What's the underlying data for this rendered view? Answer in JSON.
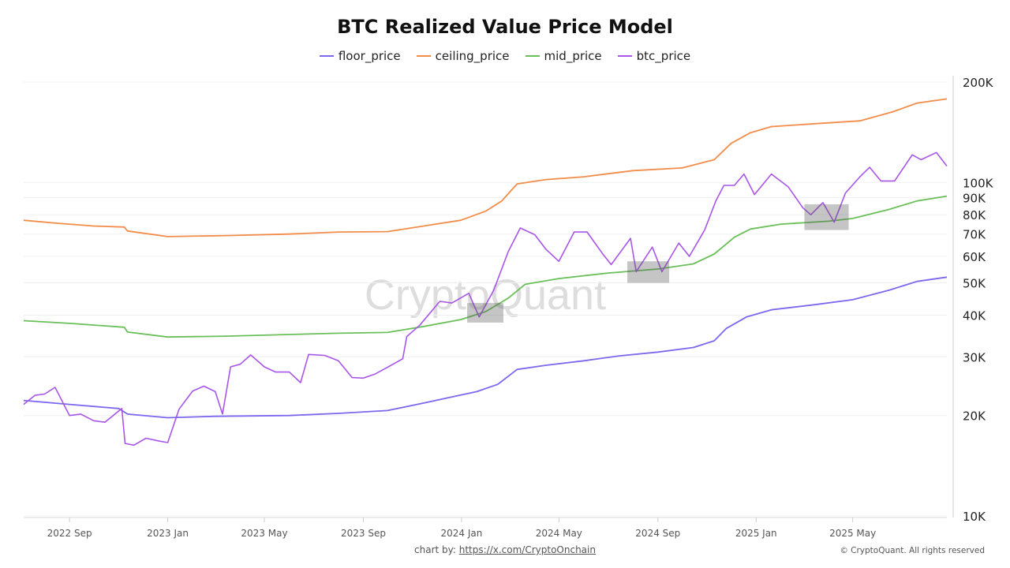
{
  "watermark": "CryptoQuant",
  "footer": {
    "credit_prefix": "chart by:",
    "credit_link": "https://x.com/CryptoOnchain",
    "copyright": "© CryptoQuant. All rights reserved"
  },
  "chart_data": {
    "type": "line",
    "title": "BTC Realized Value Price Model",
    "legend_position": "top",
    "y_scale": "log",
    "y_axis_side": "right",
    "ylim": [
      10000,
      200000
    ],
    "y_ticks": [
      10000,
      20000,
      30000,
      40000,
      50000,
      60000,
      70000,
      80000,
      90000,
      100000,
      200000
    ],
    "y_tick_labels": [
      "10K",
      "20K",
      "30K",
      "40K",
      "50K",
      "60K",
      "70K",
      "80K",
      "90K",
      "100K",
      "200K"
    ],
    "xlim": [
      "2022-07-06",
      "2025-08-26"
    ],
    "x_ticks": [
      "2022-09-01",
      "2023-01-01",
      "2023-05-01",
      "2023-09-01",
      "2024-01-01",
      "2024-05-01",
      "2024-09-01",
      "2025-01-01",
      "2025-05-01"
    ],
    "x_tick_labels": [
      "2022 Sep",
      "2023 Jan",
      "2023 May",
      "2023 Sep",
      "2024 Jan",
      "2024 May",
      "2024 Sep",
      "2025 Jan",
      "2025 May"
    ],
    "grid": "horizontal",
    "series": [
      {
        "name": "floor_price",
        "color": "#7b68ee",
        "points": [
          [
            "2022-07-06",
            22200
          ],
          [
            "2022-09-01",
            21600
          ],
          [
            "2022-11-01",
            21000
          ],
          [
            "2022-11-12",
            20200
          ],
          [
            "2023-01-01",
            19700
          ],
          [
            "2023-03-01",
            19900
          ],
          [
            "2023-06-01",
            20000
          ],
          [
            "2023-08-01",
            20300
          ],
          [
            "2023-10-01",
            20700
          ],
          [
            "2023-11-15",
            21800
          ],
          [
            "2023-12-15",
            22600
          ],
          [
            "2024-01-20",
            23600
          ],
          [
            "2024-02-15",
            24800
          ],
          [
            "2024-03-10",
            27500
          ],
          [
            "2024-04-15",
            28300
          ],
          [
            "2024-06-01",
            29200
          ],
          [
            "2024-07-15",
            30200
          ],
          [
            "2024-09-01",
            31000
          ],
          [
            "2024-10-15",
            32000
          ],
          [
            "2024-11-10",
            33500
          ],
          [
            "2024-11-25",
            36500
          ],
          [
            "2024-12-20",
            39500
          ],
          [
            "2025-01-20",
            41500
          ],
          [
            "2025-03-15",
            43000
          ],
          [
            "2025-05-01",
            44500
          ],
          [
            "2025-06-15",
            47500
          ],
          [
            "2025-07-20",
            50500
          ],
          [
            "2025-08-26",
            52000
          ]
        ]
      },
      {
        "name": "ceiling_price",
        "color": "#f28c4a",
        "points": [
          [
            "2022-07-06",
            77000
          ],
          [
            "2022-08-15",
            75500
          ],
          [
            "2022-10-01",
            74000
          ],
          [
            "2022-11-08",
            73500
          ],
          [
            "2022-11-12",
            71500
          ],
          [
            "2023-01-01",
            68800
          ],
          [
            "2023-03-15",
            69300
          ],
          [
            "2023-06-01",
            70000
          ],
          [
            "2023-08-01",
            71000
          ],
          [
            "2023-10-01",
            71200
          ],
          [
            "2023-11-15",
            74000
          ],
          [
            "2023-12-31",
            77000
          ],
          [
            "2024-01-31",
            82000
          ],
          [
            "2024-02-20",
            88000
          ],
          [
            "2024-03-10",
            99000
          ],
          [
            "2024-04-15",
            102000
          ],
          [
            "2024-06-01",
            104000
          ],
          [
            "2024-08-01",
            108500
          ],
          [
            "2024-10-01",
            110500
          ],
          [
            "2024-11-10",
            117000
          ],
          [
            "2024-12-01",
            131000
          ],
          [
            "2024-12-25",
            141000
          ],
          [
            "2025-01-20",
            147000
          ],
          [
            "2025-03-15",
            150000
          ],
          [
            "2025-05-10",
            153000
          ],
          [
            "2025-06-20",
            163000
          ],
          [
            "2025-07-20",
            173000
          ],
          [
            "2025-08-26",
            178000
          ]
        ]
      },
      {
        "name": "mid_price",
        "color": "#6abf59",
        "points": [
          [
            "2022-07-06",
            38500
          ],
          [
            "2022-09-01",
            37800
          ],
          [
            "2022-11-08",
            36800
          ],
          [
            "2022-11-12",
            35600
          ],
          [
            "2023-01-01",
            34400
          ],
          [
            "2023-03-15",
            34600
          ],
          [
            "2023-06-01",
            35000
          ],
          [
            "2023-08-01",
            35300
          ],
          [
            "2023-10-01",
            35500
          ],
          [
            "2023-11-15",
            37000
          ],
          [
            "2023-12-31",
            38800
          ],
          [
            "2024-01-31",
            41000
          ],
          [
            "2024-02-28",
            45000
          ],
          [
            "2024-03-20",
            49500
          ],
          [
            "2024-05-01",
            51500
          ],
          [
            "2024-07-01",
            53500
          ],
          [
            "2024-09-01",
            55000
          ],
          [
            "2024-10-15",
            57000
          ],
          [
            "2024-11-10",
            61000
          ],
          [
            "2024-12-05",
            68500
          ],
          [
            "2024-12-25",
            72500
          ],
          [
            "2025-02-01",
            75000
          ],
          [
            "2025-04-01",
            76500
          ],
          [
            "2025-05-01",
            78000
          ],
          [
            "2025-06-15",
            83000
          ],
          [
            "2025-07-20",
            88000
          ],
          [
            "2025-08-26",
            91000
          ]
        ]
      },
      {
        "name": "btc_price",
        "color": "#a855e8",
        "points": [
          [
            "2022-07-06",
            21600
          ],
          [
            "2022-07-20",
            23000
          ],
          [
            "2022-08-01",
            23200
          ],
          [
            "2022-08-14",
            24300
          ],
          [
            "2022-09-01",
            20000
          ],
          [
            "2022-09-15",
            20200
          ],
          [
            "2022-10-01",
            19300
          ],
          [
            "2022-10-15",
            19100
          ],
          [
            "2022-11-05",
            21000
          ],
          [
            "2022-11-09",
            16500
          ],
          [
            "2022-11-20",
            16300
          ],
          [
            "2022-12-05",
            17100
          ],
          [
            "2022-12-20",
            16800
          ],
          [
            "2023-01-01",
            16600
          ],
          [
            "2023-01-15",
            20900
          ],
          [
            "2023-02-01",
            23700
          ],
          [
            "2023-02-15",
            24500
          ],
          [
            "2023-03-01",
            23600
          ],
          [
            "2023-03-10",
            20200
          ],
          [
            "2023-03-20",
            28000
          ],
          [
            "2023-04-01",
            28500
          ],
          [
            "2023-04-14",
            30400
          ],
          [
            "2023-05-01",
            28000
          ],
          [
            "2023-05-15",
            27000
          ],
          [
            "2023-06-01",
            27000
          ],
          [
            "2023-06-15",
            25100
          ],
          [
            "2023-06-25",
            30500
          ],
          [
            "2023-07-15",
            30300
          ],
          [
            "2023-08-01",
            29200
          ],
          [
            "2023-08-18",
            26000
          ],
          [
            "2023-09-01",
            25900
          ],
          [
            "2023-09-15",
            26600
          ],
          [
            "2023-10-01",
            27900
          ],
          [
            "2023-10-20",
            29600
          ],
          [
            "2023-10-25",
            34500
          ],
          [
            "2023-11-10",
            37300
          ],
          [
            "2023-12-05",
            44000
          ],
          [
            "2023-12-20",
            43500
          ],
          [
            "2024-01-10",
            46500
          ],
          [
            "2024-01-23",
            39500
          ],
          [
            "2024-02-10",
            47500
          ],
          [
            "2024-02-28",
            62000
          ],
          [
            "2024-03-14",
            73000
          ],
          [
            "2024-04-01",
            69700
          ],
          [
            "2024-04-15",
            63000
          ],
          [
            "2024-05-01",
            58000
          ],
          [
            "2024-05-20",
            71000
          ],
          [
            "2024-06-05",
            71000
          ],
          [
            "2024-06-25",
            60800
          ],
          [
            "2024-07-05",
            56700
          ],
          [
            "2024-07-29",
            68000
          ],
          [
            "2024-08-05",
            54000
          ],
          [
            "2024-08-25",
            64000
          ],
          [
            "2024-09-06",
            54000
          ],
          [
            "2024-09-27",
            65800
          ],
          [
            "2024-10-10",
            60000
          ],
          [
            "2024-10-29",
            72000
          ],
          [
            "2024-11-12",
            88000
          ],
          [
            "2024-11-22",
            98000
          ],
          [
            "2024-12-05",
            98000
          ],
          [
            "2024-12-17",
            106000
          ],
          [
            "2024-12-30",
            92000
          ],
          [
            "2025-01-20",
            106000
          ],
          [
            "2025-02-10",
            97000
          ],
          [
            "2025-02-28",
            84000
          ],
          [
            "2025-03-10",
            80000
          ],
          [
            "2025-03-25",
            87000
          ],
          [
            "2025-04-08",
            76000
          ],
          [
            "2025-04-22",
            93000
          ],
          [
            "2025-05-10",
            104000
          ],
          [
            "2025-05-22",
            111000
          ],
          [
            "2025-06-05",
            101000
          ],
          [
            "2025-06-22",
            101000
          ],
          [
            "2025-07-14",
            121000
          ],
          [
            "2025-07-25",
            117000
          ],
          [
            "2025-08-13",
            123000
          ],
          [
            "2025-08-26",
            112000
          ]
        ]
      }
    ],
    "highlight_regions": [
      {
        "x": [
          "2024-01-08",
          "2024-02-22"
        ],
        "y": [
          38000,
          43500
        ]
      },
      {
        "x": [
          "2024-07-25",
          "2024-09-15"
        ],
        "y": [
          50000,
          58000
        ]
      },
      {
        "x": [
          "2025-03-02",
          "2025-04-26"
        ],
        "y": [
          72000,
          86000
        ]
      }
    ]
  }
}
